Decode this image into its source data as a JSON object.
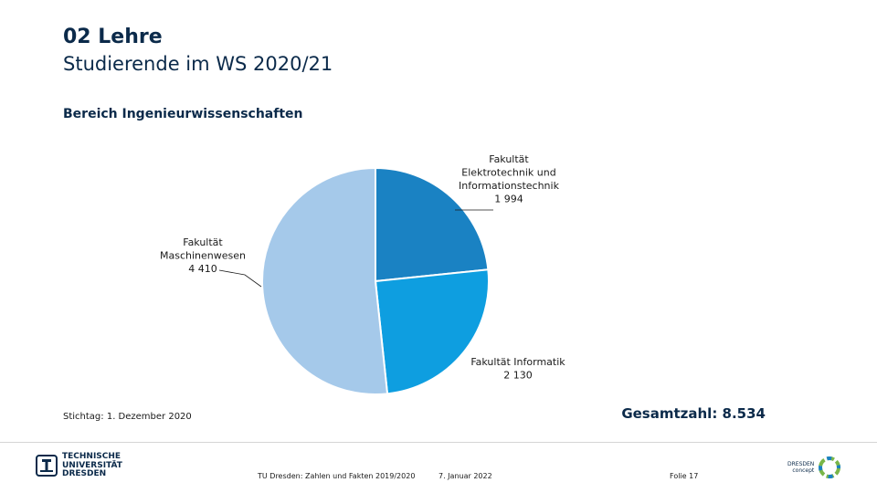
{
  "header": {
    "title": "02 Lehre",
    "subtitle": "Studierende im WS 2020/21",
    "section": "Bereich Ingenieurwissenschaften"
  },
  "chart_data": {
    "type": "pie",
    "slices": [
      {
        "label_lines": [
          "Fakultät",
          "Elektrotechnik und",
          "Informationstechnik",
          "1 994"
        ],
        "value": 1994,
        "color": "#1a82c3"
      },
      {
        "label_lines": [
          "Fakultät Informatik",
          "2 130"
        ],
        "value": 2130,
        "color": "#0e9ee0"
      },
      {
        "label_lines": [
          "Fakultät",
          "Maschinenwesen",
          "4 410"
        ],
        "value": 4410,
        "color": "#a5c9ea"
      }
    ],
    "total_label": "Gesamtzahl: 8.534"
  },
  "footnote": "Stichtag: 1. Dezember 2020",
  "footer": {
    "logo_left_lines": [
      "TECHNISCHE",
      "UNIVERSITÄT",
      "DRESDEN"
    ],
    "source": "TU Dresden: Zahlen und Fakten 2019/2020",
    "date": "7. Januar 2022",
    "page": "Folie 17",
    "logo_right_lines": [
      "DRESDEN",
      "concept"
    ]
  },
  "colors": {
    "navy": "#0b2a4a",
    "accent": "#1a82c3"
  }
}
